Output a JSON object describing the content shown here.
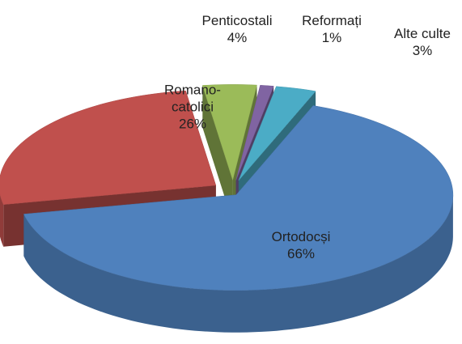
{
  "chart_data": {
    "type": "pie3d",
    "categories": [
      "Ortodocși",
      "Romano-catolici",
      "Penticostali",
      "Reformați",
      "Alte culte"
    ],
    "values": [
      66,
      26,
      4,
      1,
      3
    ],
    "value_labels": [
      "66%",
      "26%",
      "4%",
      "1%",
      "3%"
    ],
    "colors": [
      "#4f81bd",
      "#c0504d",
      "#9bbb59",
      "#8064a2",
      "#4bacc6"
    ]
  }
}
